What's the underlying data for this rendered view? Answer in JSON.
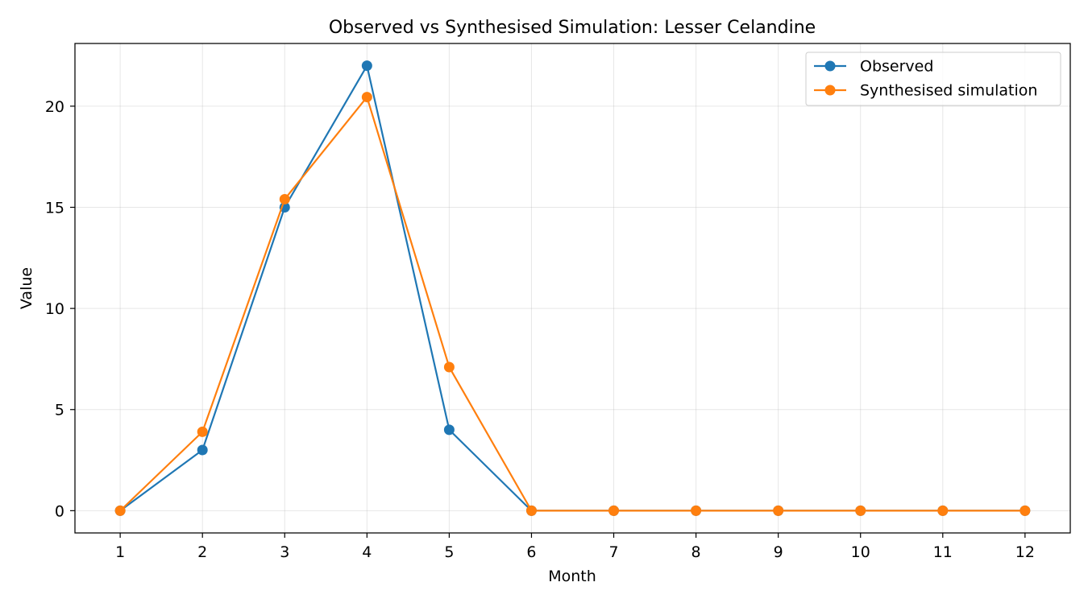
{
  "chart_data": {
    "type": "line",
    "title": "Observed vs Synthesised Simulation: Lesser Celandine",
    "xlabel": "Month",
    "ylabel": "Value",
    "x": [
      1,
      2,
      3,
      4,
      5,
      6,
      7,
      8,
      9,
      10,
      11,
      12
    ],
    "xlim": [
      0.45,
      12.55
    ],
    "ylim": [
      -1.1,
      23.1
    ],
    "yticks": [
      0,
      5,
      10,
      15,
      20
    ],
    "grid": true,
    "legend_position": "top-right",
    "series": [
      {
        "name": "Observed",
        "color": "#1f77b4",
        "marker": "circle",
        "values": [
          0,
          3,
          15,
          22,
          4,
          0,
          0,
          0,
          0,
          0,
          0,
          0
        ]
      },
      {
        "name": "Synthesised simulation",
        "color": "#ff7f0e",
        "marker": "circle",
        "values": [
          0,
          3.9,
          15.4,
          20.45,
          7.1,
          0,
          0,
          0,
          0,
          0,
          0,
          0
        ]
      }
    ]
  }
}
